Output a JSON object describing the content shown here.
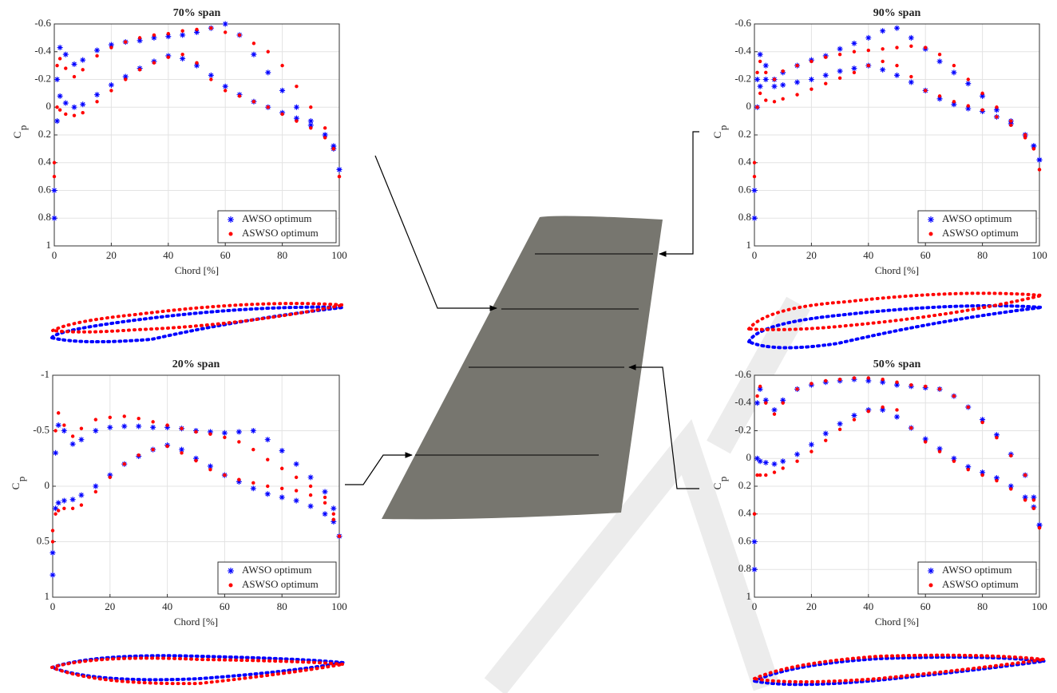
{
  "chart_data": [
    {
      "type": "scatter",
      "title": "70% span",
      "xlabel": "Chord [%]",
      "ylabel": "C",
      "ylabel_subscript": "p",
      "xlim": [
        0,
        100
      ],
      "xticks": [
        0,
        20,
        40,
        60,
        80,
        100
      ],
      "ylim": [
        -0.6,
        1
      ],
      "yticks": [
        -0.6,
        -0.4,
        -0.2,
        0,
        0.2,
        0.4,
        0.6,
        0.8,
        1
      ],
      "y_reversed": true,
      "grid": true,
      "legend": "lower right",
      "x": [
        0,
        1,
        2,
        4,
        7,
        10,
        15,
        20,
        25,
        30,
        35,
        40,
        45,
        50,
        55,
        60,
        65,
        70,
        75,
        80,
        85,
        90,
        95,
        98,
        100,
        0,
        1,
        2,
        4,
        7,
        10,
        15,
        20,
        25,
        30,
        35,
        40,
        45,
        50,
        55,
        60,
        65,
        70,
        75,
        80,
        85,
        90,
        95,
        98,
        100
      ],
      "series": [
        {
          "name": "AWSO optimum",
          "color": "#0000ff",
          "marker": "asterisk",
          "values": [
            0.8,
            -0.2,
            -0.43,
            -0.38,
            -0.31,
            -0.34,
            -0.41,
            -0.45,
            -0.47,
            -0.48,
            -0.5,
            -0.51,
            -0.52,
            -0.54,
            -0.57,
            -0.6,
            -0.52,
            -0.38,
            -0.25,
            -0.12,
            0,
            0.1,
            0.2,
            0.3,
            0.45,
            0.6,
            0.1,
            -0.08,
            -0.03,
            0,
            -0.02,
            -0.09,
            -0.16,
            -0.22,
            -0.28,
            -0.33,
            -0.37,
            -0.35,
            -0.3,
            -0.23,
            -0.15,
            -0.09,
            -0.04,
            0,
            0.04,
            0.08,
            0.13,
            0.2,
            0.28,
            0.45
          ]
        },
        {
          "name": "ASWSO optimum",
          "color": "#ff0000",
          "marker": "dot",
          "values": [
            0.5,
            -0.3,
            -0.35,
            -0.28,
            -0.22,
            -0.27,
            -0.37,
            -0.43,
            -0.47,
            -0.5,
            -0.52,
            -0.53,
            -0.55,
            -0.56,
            -0.57,
            -0.54,
            -0.52,
            -0.46,
            -0.4,
            -0.3,
            -0.15,
            0,
            0.15,
            0.3,
            0.5,
            0.4,
            0,
            0.02,
            0.05,
            0.06,
            0.04,
            -0.04,
            -0.12,
            -0.2,
            -0.27,
            -0.32,
            -0.36,
            -0.38,
            -0.32,
            -0.2,
            -0.12,
            -0.08,
            -0.04,
            0,
            0.05,
            0.1,
            0.15,
            0.22,
            0.3,
            0.5
          ]
        }
      ]
    },
    {
      "type": "scatter",
      "title": "90% span",
      "xlabel": "Chord [%]",
      "ylabel": "C",
      "ylabel_subscript": "p",
      "xlim": [
        0,
        100
      ],
      "xticks": [
        0,
        20,
        40,
        60,
        80,
        100
      ],
      "ylim": [
        -0.6,
        1
      ],
      "yticks": [
        -0.6,
        -0.4,
        -0.2,
        0,
        0.2,
        0.4,
        0.6,
        0.8,
        1
      ],
      "y_reversed": true,
      "grid": true,
      "legend": "lower right",
      "x": [
        0,
        1,
        2,
        4,
        7,
        10,
        15,
        20,
        25,
        30,
        35,
        40,
        45,
        50,
        55,
        60,
        65,
        70,
        75,
        80,
        85,
        90,
        95,
        98,
        100,
        0,
        1,
        2,
        4,
        7,
        10,
        15,
        20,
        25,
        30,
        35,
        40,
        45,
        50,
        55,
        60,
        65,
        70,
        75,
        80,
        85,
        90,
        95,
        98,
        100
      ],
      "series": [
        {
          "name": "AWSO optimum",
          "color": "#0000ff",
          "marker": "asterisk",
          "values": [
            0.8,
            -0.2,
            -0.38,
            -0.3,
            -0.2,
            -0.25,
            -0.3,
            -0.34,
            -0.37,
            -0.42,
            -0.46,
            -0.5,
            -0.55,
            -0.57,
            -0.5,
            -0.42,
            -0.33,
            -0.25,
            -0.17,
            -0.08,
            0.02,
            0.1,
            0.2,
            0.28,
            0.38,
            0.6,
            0,
            -0.15,
            -0.2,
            -0.15,
            -0.16,
            -0.18,
            -0.2,
            -0.23,
            -0.26,
            -0.28,
            -0.3,
            -0.27,
            -0.23,
            -0.18,
            -0.12,
            -0.06,
            -0.02,
            0.01,
            0.03,
            0.07,
            0.12,
            0.2,
            0.28,
            0.38
          ]
        },
        {
          "name": "ASWSO optimum",
          "color": "#ff0000",
          "marker": "dot",
          "values": [
            0.5,
            -0.25,
            -0.33,
            -0.25,
            -0.2,
            -0.26,
            -0.3,
            -0.33,
            -0.36,
            -0.38,
            -0.4,
            -0.41,
            -0.42,
            -0.43,
            -0.44,
            -0.43,
            -0.38,
            -0.3,
            -0.2,
            -0.1,
            0,
            0.1,
            0.2,
            0.3,
            0.45,
            0.4,
            0,
            -0.1,
            -0.05,
            -0.04,
            -0.06,
            -0.09,
            -0.13,
            -0.17,
            -0.21,
            -0.25,
            -0.3,
            -0.33,
            -0.3,
            -0.22,
            -0.12,
            -0.08,
            -0.04,
            -0.01,
            0.02,
            0.07,
            0.13,
            0.22,
            0.3,
            0.45
          ]
        }
      ]
    },
    {
      "type": "scatter",
      "title": "20% span",
      "xlabel": "Chord [%]",
      "ylabel": "C",
      "ylabel_subscript": "p",
      "xlim": [
        0,
        100
      ],
      "xticks": [
        0,
        20,
        40,
        60,
        80,
        100
      ],
      "ylim": [
        -1,
        1
      ],
      "yticks": [
        -1,
        -0.5,
        0,
        0.5,
        1
      ],
      "y_reversed": true,
      "grid": true,
      "legend": "lower right",
      "x": [
        0,
        1,
        2,
        4,
        7,
        10,
        15,
        20,
        25,
        30,
        35,
        40,
        45,
        50,
        55,
        60,
        65,
        70,
        75,
        80,
        85,
        90,
        95,
        98,
        100,
        0,
        1,
        2,
        4,
        7,
        10,
        15,
        20,
        25,
        30,
        35,
        40,
        45,
        50,
        55,
        60,
        65,
        70,
        75,
        80,
        85,
        90,
        95,
        98,
        100
      ],
      "series": [
        {
          "name": "AWSO optimum",
          "color": "#0000ff",
          "marker": "asterisk",
          "values": [
            0.8,
            -0.3,
            -0.55,
            -0.5,
            -0.38,
            -0.42,
            -0.5,
            -0.53,
            -0.54,
            -0.54,
            -0.53,
            -0.53,
            -0.52,
            -0.5,
            -0.49,
            -0.48,
            -0.49,
            -0.5,
            -0.42,
            -0.32,
            -0.2,
            -0.08,
            0.05,
            0.2,
            0.45,
            0.6,
            0.2,
            0.15,
            0.13,
            0.12,
            0.08,
            0,
            -0.1,
            -0.2,
            -0.27,
            -0.33,
            -0.37,
            -0.33,
            -0.25,
            -0.18,
            -0.1,
            -0.04,
            0.02,
            0.07,
            0.1,
            0.13,
            0.18,
            0.25,
            0.32,
            0.45
          ]
        },
        {
          "name": "ASWSO optimum",
          "color": "#ff0000",
          "marker": "dot",
          "values": [
            0.5,
            -0.5,
            -0.66,
            -0.55,
            -0.45,
            -0.52,
            -0.6,
            -0.62,
            -0.63,
            -0.61,
            -0.58,
            -0.55,
            -0.52,
            -0.49,
            -0.47,
            -0.44,
            -0.4,
            -0.33,
            -0.24,
            -0.16,
            -0.08,
            0,
            0.1,
            0.25,
            0.45,
            0.4,
            0.25,
            0.22,
            0.2,
            0.2,
            0.17,
            0.05,
            -0.08,
            -0.2,
            -0.28,
            -0.33,
            -0.36,
            -0.3,
            -0.23,
            -0.15,
            -0.1,
            -0.06,
            -0.03,
            0,
            0.02,
            0.04,
            0.08,
            0.15,
            0.3,
            0.45
          ]
        }
      ]
    },
    {
      "type": "scatter",
      "title": "50% span",
      "xlabel": "Chord [%]",
      "ylabel": "C",
      "ylabel_subscript": "p",
      "xlim": [
        0,
        100
      ],
      "xticks": [
        0,
        20,
        40,
        60,
        80,
        100
      ],
      "ylim": [
        -0.6,
        1
      ],
      "yticks": [
        -0.6,
        -0.4,
        -0.2,
        0,
        0.2,
        0.4,
        0.6,
        0.8,
        1
      ],
      "y_reversed": true,
      "grid": true,
      "legend": "lower right",
      "x": [
        0,
        1,
        2,
        4,
        7,
        10,
        15,
        20,
        25,
        30,
        35,
        40,
        45,
        50,
        55,
        60,
        65,
        70,
        75,
        80,
        85,
        90,
        95,
        98,
        100,
        0,
        1,
        2,
        4,
        7,
        10,
        15,
        20,
        25,
        30,
        35,
        40,
        45,
        50,
        55,
        60,
        65,
        70,
        75,
        80,
        85,
        90,
        95,
        98,
        100
      ],
      "series": [
        {
          "name": "AWSO optimum",
          "color": "#0000ff",
          "marker": "asterisk",
          "values": [
            0.8,
            -0.4,
            -0.5,
            -0.42,
            -0.35,
            -0.42,
            -0.5,
            -0.53,
            -0.55,
            -0.56,
            -0.57,
            -0.56,
            -0.55,
            -0.53,
            -0.52,
            -0.51,
            -0.5,
            -0.45,
            -0.37,
            -0.28,
            -0.17,
            -0.03,
            0.12,
            0.28,
            0.48,
            0.6,
            0,
            0.02,
            0.03,
            0.04,
            0.02,
            -0.03,
            -0.1,
            -0.18,
            -0.25,
            -0.31,
            -0.35,
            -0.35,
            -0.3,
            -0.22,
            -0.14,
            -0.07,
            0,
            0.06,
            0.1,
            0.14,
            0.2,
            0.28,
            0.35,
            0.48
          ]
        },
        {
          "name": "ASWSO optimum",
          "color": "#ff0000",
          "marker": "dot",
          "values": [
            0.4,
            -0.45,
            -0.52,
            -0.4,
            -0.32,
            -0.4,
            -0.5,
            -0.54,
            -0.56,
            -0.57,
            -0.58,
            -0.58,
            -0.57,
            -0.55,
            -0.53,
            -0.52,
            -0.5,
            -0.45,
            -0.37,
            -0.26,
            -0.15,
            -0.02,
            0.12,
            0.3,
            0.5,
            0.4,
            0.12,
            0.12,
            0.12,
            0.1,
            0.07,
            0.02,
            -0.05,
            -0.13,
            -0.21,
            -0.28,
            -0.34,
            -0.37,
            -0.35,
            -0.22,
            -0.12,
            -0.05,
            0.02,
            0.08,
            0.12,
            0.16,
            0.22,
            0.3,
            0.36,
            0.5
          ]
        }
      ]
    }
  ]
}
